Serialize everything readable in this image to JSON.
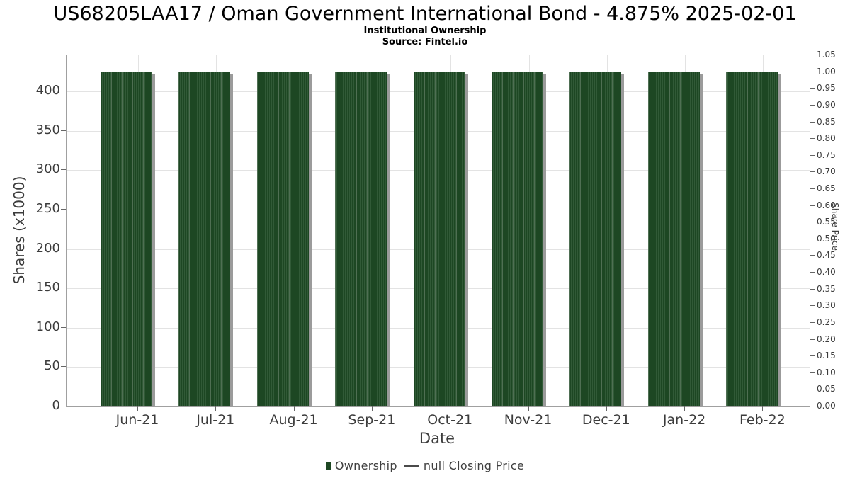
{
  "title": "US68205LAA17 / Oman Government International Bond - 4.875% 2025-02-01",
  "subtitle": "Institutional Ownership",
  "source": "Source: Fintel.io",
  "colors": {
    "bar": "#1d4723",
    "bar_stripe": "#315a37",
    "bar_shadow": "#9b9b9b",
    "grid": "#e3e3e3",
    "axis_border": "#a0a0a0",
    "tick": "#666666",
    "text": "#3c3c3c",
    "title_text": "#000000",
    "legend_line": "#4a4a4a"
  },
  "legend": [
    {
      "label": "Ownership",
      "marker": "square",
      "color": "#1d4723"
    },
    {
      "label": "null Closing Price",
      "marker": "line",
      "color": "#4a4a4a"
    }
  ],
  "chart_data": {
    "type": "bar",
    "title": "US68205LAA17 / Oman Government International Bond - 4.875% 2025-02-01",
    "subtitle": "Institutional Ownership",
    "source": "Source: Fintel.io",
    "categories": [
      "Jun-21",
      "Jul-21",
      "Aug-21",
      "Sep-21",
      "Oct-21",
      "Nov-21",
      "Dec-21",
      "Jan-22",
      "Feb-22"
    ],
    "series": [
      {
        "name": "Ownership",
        "values": [
          425.7,
          425.7,
          425.7,
          425.7,
          425.7,
          425.7,
          425.7,
          425.7,
          425.7
        ]
      },
      {
        "name": "null Closing Price",
        "values": []
      }
    ],
    "xlabel": "Date",
    "ylabel_left": "Shares (x1000)",
    "ylabel_right": "Share Price",
    "ylim_left": [
      0,
      446
    ],
    "ylim_right": [
      0,
      1.05
    ],
    "yticks_left": [
      "0",
      "50",
      "100",
      "150",
      "200",
      "250",
      "300",
      "350",
      "400"
    ],
    "yticks_right": [
      "0.00",
      "0.05",
      "0.10",
      "0.15",
      "0.20",
      "0.25",
      "0.30",
      "0.35",
      "0.40",
      "0.45",
      "0.50",
      "0.55",
      "0.60",
      "0.65",
      "0.70",
      "0.75",
      "0.80",
      "0.85",
      "0.90",
      "0.95",
      "1.00",
      "1.05"
    ],
    "grid": true,
    "legend_position": "bottom"
  }
}
